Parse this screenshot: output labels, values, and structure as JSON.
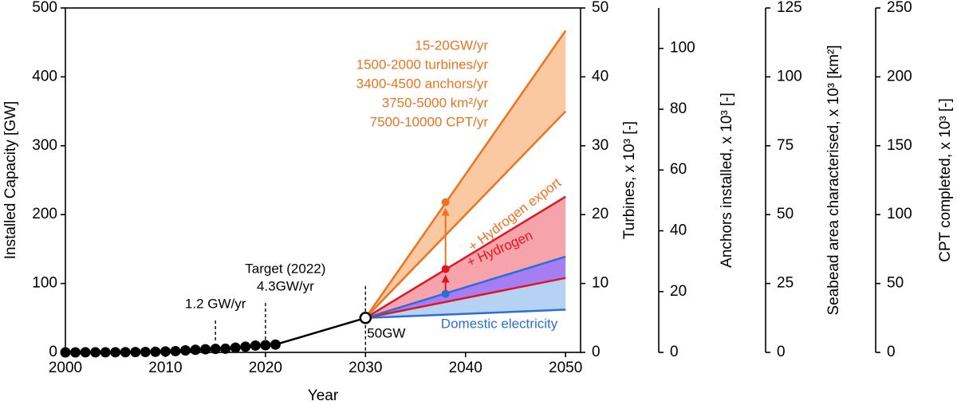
{
  "chart_data": {
    "type": "line",
    "xlabel": "Year",
    "ylabel": "Installed Capacity [GW]",
    "xlim": [
      2000,
      2051.5
    ],
    "xticks": [
      2000,
      2010,
      2020,
      2030,
      2040,
      2050
    ],
    "ylim": [
      0,
      500
    ],
    "yticks": [
      0,
      100,
      200,
      300,
      400,
      500
    ],
    "historical": {
      "color": "#000000",
      "x": [
        2000,
        2001,
        2002,
        2003,
        2004,
        2005,
        2006,
        2007,
        2008,
        2009,
        2010,
        2011,
        2012,
        2013,
        2014,
        2015,
        2016,
        2017,
        2018,
        2019,
        2020,
        2021
      ],
      "values": [
        0,
        0,
        0.1,
        0.1,
        0.1,
        0.2,
        0.3,
        0.4,
        0.6,
        0.9,
        1.3,
        1.8,
        2.9,
        3.7,
        4.5,
        5.1,
        5.3,
        6.8,
        8.2,
        9.9,
        10.4,
        11.3
      ]
    },
    "target_point": {
      "x": [
        2021,
        2030
      ],
      "values": [
        11.3,
        50
      ],
      "label": "50GW"
    },
    "scenario_x": [
      2030,
      2050
    ],
    "series": [
      {
        "color": "#2a6ed6",
        "values": [
          50,
          62
        ],
        "fill": "#b5d2f5"
      },
      {
        "color": "#e0161f",
        "values": [
          50,
          108
        ],
        "fill": "#a47ef2"
      },
      {
        "color": "#2a6ed6",
        "values": [
          50,
          139
        ],
        "fill": "#f7a3ab"
      },
      {
        "color": "#e0161f",
        "values": [
          50,
          226
        ]
      },
      {
        "color": "#ec7420",
        "values": [
          50,
          350
        ],
        "fill": "#fac9a1"
      },
      {
        "color": "#ec7420",
        "values": [
          50,
          467
        ]
      }
    ],
    "milestones": {
      "x": 2038,
      "values": [
        85,
        121,
        218
      ],
      "colors": [
        "#2a6ed6",
        "#e0161f",
        "#ec7420"
      ]
    },
    "annotations": [
      {
        "x": 2015,
        "lines": [
          "1.2 GW/yr"
        ]
      },
      {
        "x": 2020,
        "lines": [
          "Target (2022)",
          "4.3GW/yr"
        ]
      },
      {
        "x": 2030,
        "lines": []
      }
    ],
    "scenario_labels": [
      {
        "text": "Domestic electricity",
        "color": "#2a6ed6"
      },
      {
        "text": "+ Hydrogen",
        "color": "#e0161f"
      },
      {
        "text": "+ Hydrogen export",
        "color": "#ec7420"
      }
    ],
    "rates": {
      "color": "#ec7420",
      "lines": [
        "15-20GW/yr",
        "1500-2000 turbines/yr",
        "3400-4500 anchors/yr",
        "3750-5000 km²/yr",
        "7500-10000 CPT/yr"
      ]
    },
    "right_axes": [
      {
        "label": "Turbines, x 10³ [-]",
        "ylim": [
          0,
          50
        ],
        "yticks": [
          0,
          10,
          20,
          30,
          40,
          50
        ]
      },
      {
        "label": "Anchors installed, x 10³ [-]",
        "ylim": [
          0,
          113.3
        ],
        "yticks": [
          0,
          20,
          40,
          60,
          80,
          100
        ]
      },
      {
        "label": "Seabead area characterised, x 10³ [km²]",
        "ylim": [
          0,
          125
        ],
        "yticks": [
          0,
          25,
          50,
          75,
          100,
          125
        ]
      },
      {
        "label": "CPT completed, x 10³ [-]",
        "ylim": [
          0,
          250
        ],
        "yticks": [
          0,
          50,
          100,
          150,
          200,
          250
        ]
      }
    ]
  }
}
